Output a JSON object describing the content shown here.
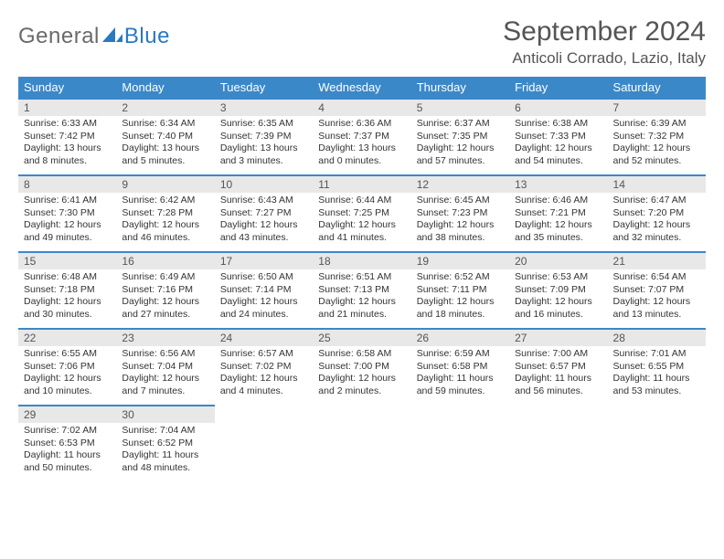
{
  "logo": {
    "text1": "General",
    "text2": "Blue"
  },
  "header": {
    "month_title": "September 2024",
    "location": "Anticoli Corrado, Lazio, Italy"
  },
  "colors": {
    "header_bg": "#3b88c9",
    "header_text": "#ffffff",
    "daynum_bg": "#e8e8e8",
    "cell_border_top": "#3b88c9",
    "body_text": "#333333",
    "title_text": "#555555",
    "logo_general": "#6a6a6a",
    "logo_blue": "#2b78c2",
    "page_bg": "#ffffff"
  },
  "weekdays": [
    "Sunday",
    "Monday",
    "Tuesday",
    "Wednesday",
    "Thursday",
    "Friday",
    "Saturday"
  ],
  "weeks": [
    [
      {
        "n": "1",
        "sr": "6:33 AM",
        "ss": "7:42 PM",
        "dl": "13 hours and 8 minutes."
      },
      {
        "n": "2",
        "sr": "6:34 AM",
        "ss": "7:40 PM",
        "dl": "13 hours and 5 minutes."
      },
      {
        "n": "3",
        "sr": "6:35 AM",
        "ss": "7:39 PM",
        "dl": "13 hours and 3 minutes."
      },
      {
        "n": "4",
        "sr": "6:36 AM",
        "ss": "7:37 PM",
        "dl": "13 hours and 0 minutes."
      },
      {
        "n": "5",
        "sr": "6:37 AM",
        "ss": "7:35 PM",
        "dl": "12 hours and 57 minutes."
      },
      {
        "n": "6",
        "sr": "6:38 AM",
        "ss": "7:33 PM",
        "dl": "12 hours and 54 minutes."
      },
      {
        "n": "7",
        "sr": "6:39 AM",
        "ss": "7:32 PM",
        "dl": "12 hours and 52 minutes."
      }
    ],
    [
      {
        "n": "8",
        "sr": "6:41 AM",
        "ss": "7:30 PM",
        "dl": "12 hours and 49 minutes."
      },
      {
        "n": "9",
        "sr": "6:42 AM",
        "ss": "7:28 PM",
        "dl": "12 hours and 46 minutes."
      },
      {
        "n": "10",
        "sr": "6:43 AM",
        "ss": "7:27 PM",
        "dl": "12 hours and 43 minutes."
      },
      {
        "n": "11",
        "sr": "6:44 AM",
        "ss": "7:25 PM",
        "dl": "12 hours and 41 minutes."
      },
      {
        "n": "12",
        "sr": "6:45 AM",
        "ss": "7:23 PM",
        "dl": "12 hours and 38 minutes."
      },
      {
        "n": "13",
        "sr": "6:46 AM",
        "ss": "7:21 PM",
        "dl": "12 hours and 35 minutes."
      },
      {
        "n": "14",
        "sr": "6:47 AM",
        "ss": "7:20 PM",
        "dl": "12 hours and 32 minutes."
      }
    ],
    [
      {
        "n": "15",
        "sr": "6:48 AM",
        "ss": "7:18 PM",
        "dl": "12 hours and 30 minutes."
      },
      {
        "n": "16",
        "sr": "6:49 AM",
        "ss": "7:16 PM",
        "dl": "12 hours and 27 minutes."
      },
      {
        "n": "17",
        "sr": "6:50 AM",
        "ss": "7:14 PM",
        "dl": "12 hours and 24 minutes."
      },
      {
        "n": "18",
        "sr": "6:51 AM",
        "ss": "7:13 PM",
        "dl": "12 hours and 21 minutes."
      },
      {
        "n": "19",
        "sr": "6:52 AM",
        "ss": "7:11 PM",
        "dl": "12 hours and 18 minutes."
      },
      {
        "n": "20",
        "sr": "6:53 AM",
        "ss": "7:09 PM",
        "dl": "12 hours and 16 minutes."
      },
      {
        "n": "21",
        "sr": "6:54 AM",
        "ss": "7:07 PM",
        "dl": "12 hours and 13 minutes."
      }
    ],
    [
      {
        "n": "22",
        "sr": "6:55 AM",
        "ss": "7:06 PM",
        "dl": "12 hours and 10 minutes."
      },
      {
        "n": "23",
        "sr": "6:56 AM",
        "ss": "7:04 PM",
        "dl": "12 hours and 7 minutes."
      },
      {
        "n": "24",
        "sr": "6:57 AM",
        "ss": "7:02 PM",
        "dl": "12 hours and 4 minutes."
      },
      {
        "n": "25",
        "sr": "6:58 AM",
        "ss": "7:00 PM",
        "dl": "12 hours and 2 minutes."
      },
      {
        "n": "26",
        "sr": "6:59 AM",
        "ss": "6:58 PM",
        "dl": "11 hours and 59 minutes."
      },
      {
        "n": "27",
        "sr": "7:00 AM",
        "ss": "6:57 PM",
        "dl": "11 hours and 56 minutes."
      },
      {
        "n": "28",
        "sr": "7:01 AM",
        "ss": "6:55 PM",
        "dl": "11 hours and 53 minutes."
      }
    ],
    [
      {
        "n": "29",
        "sr": "7:02 AM",
        "ss": "6:53 PM",
        "dl": "11 hours and 50 minutes."
      },
      {
        "n": "30",
        "sr": "7:04 AM",
        "ss": "6:52 PM",
        "dl": "11 hours and 48 minutes."
      },
      null,
      null,
      null,
      null,
      null
    ]
  ],
  "labels": {
    "sunrise": "Sunrise: ",
    "sunset": "Sunset: ",
    "daylight": "Daylight: "
  }
}
